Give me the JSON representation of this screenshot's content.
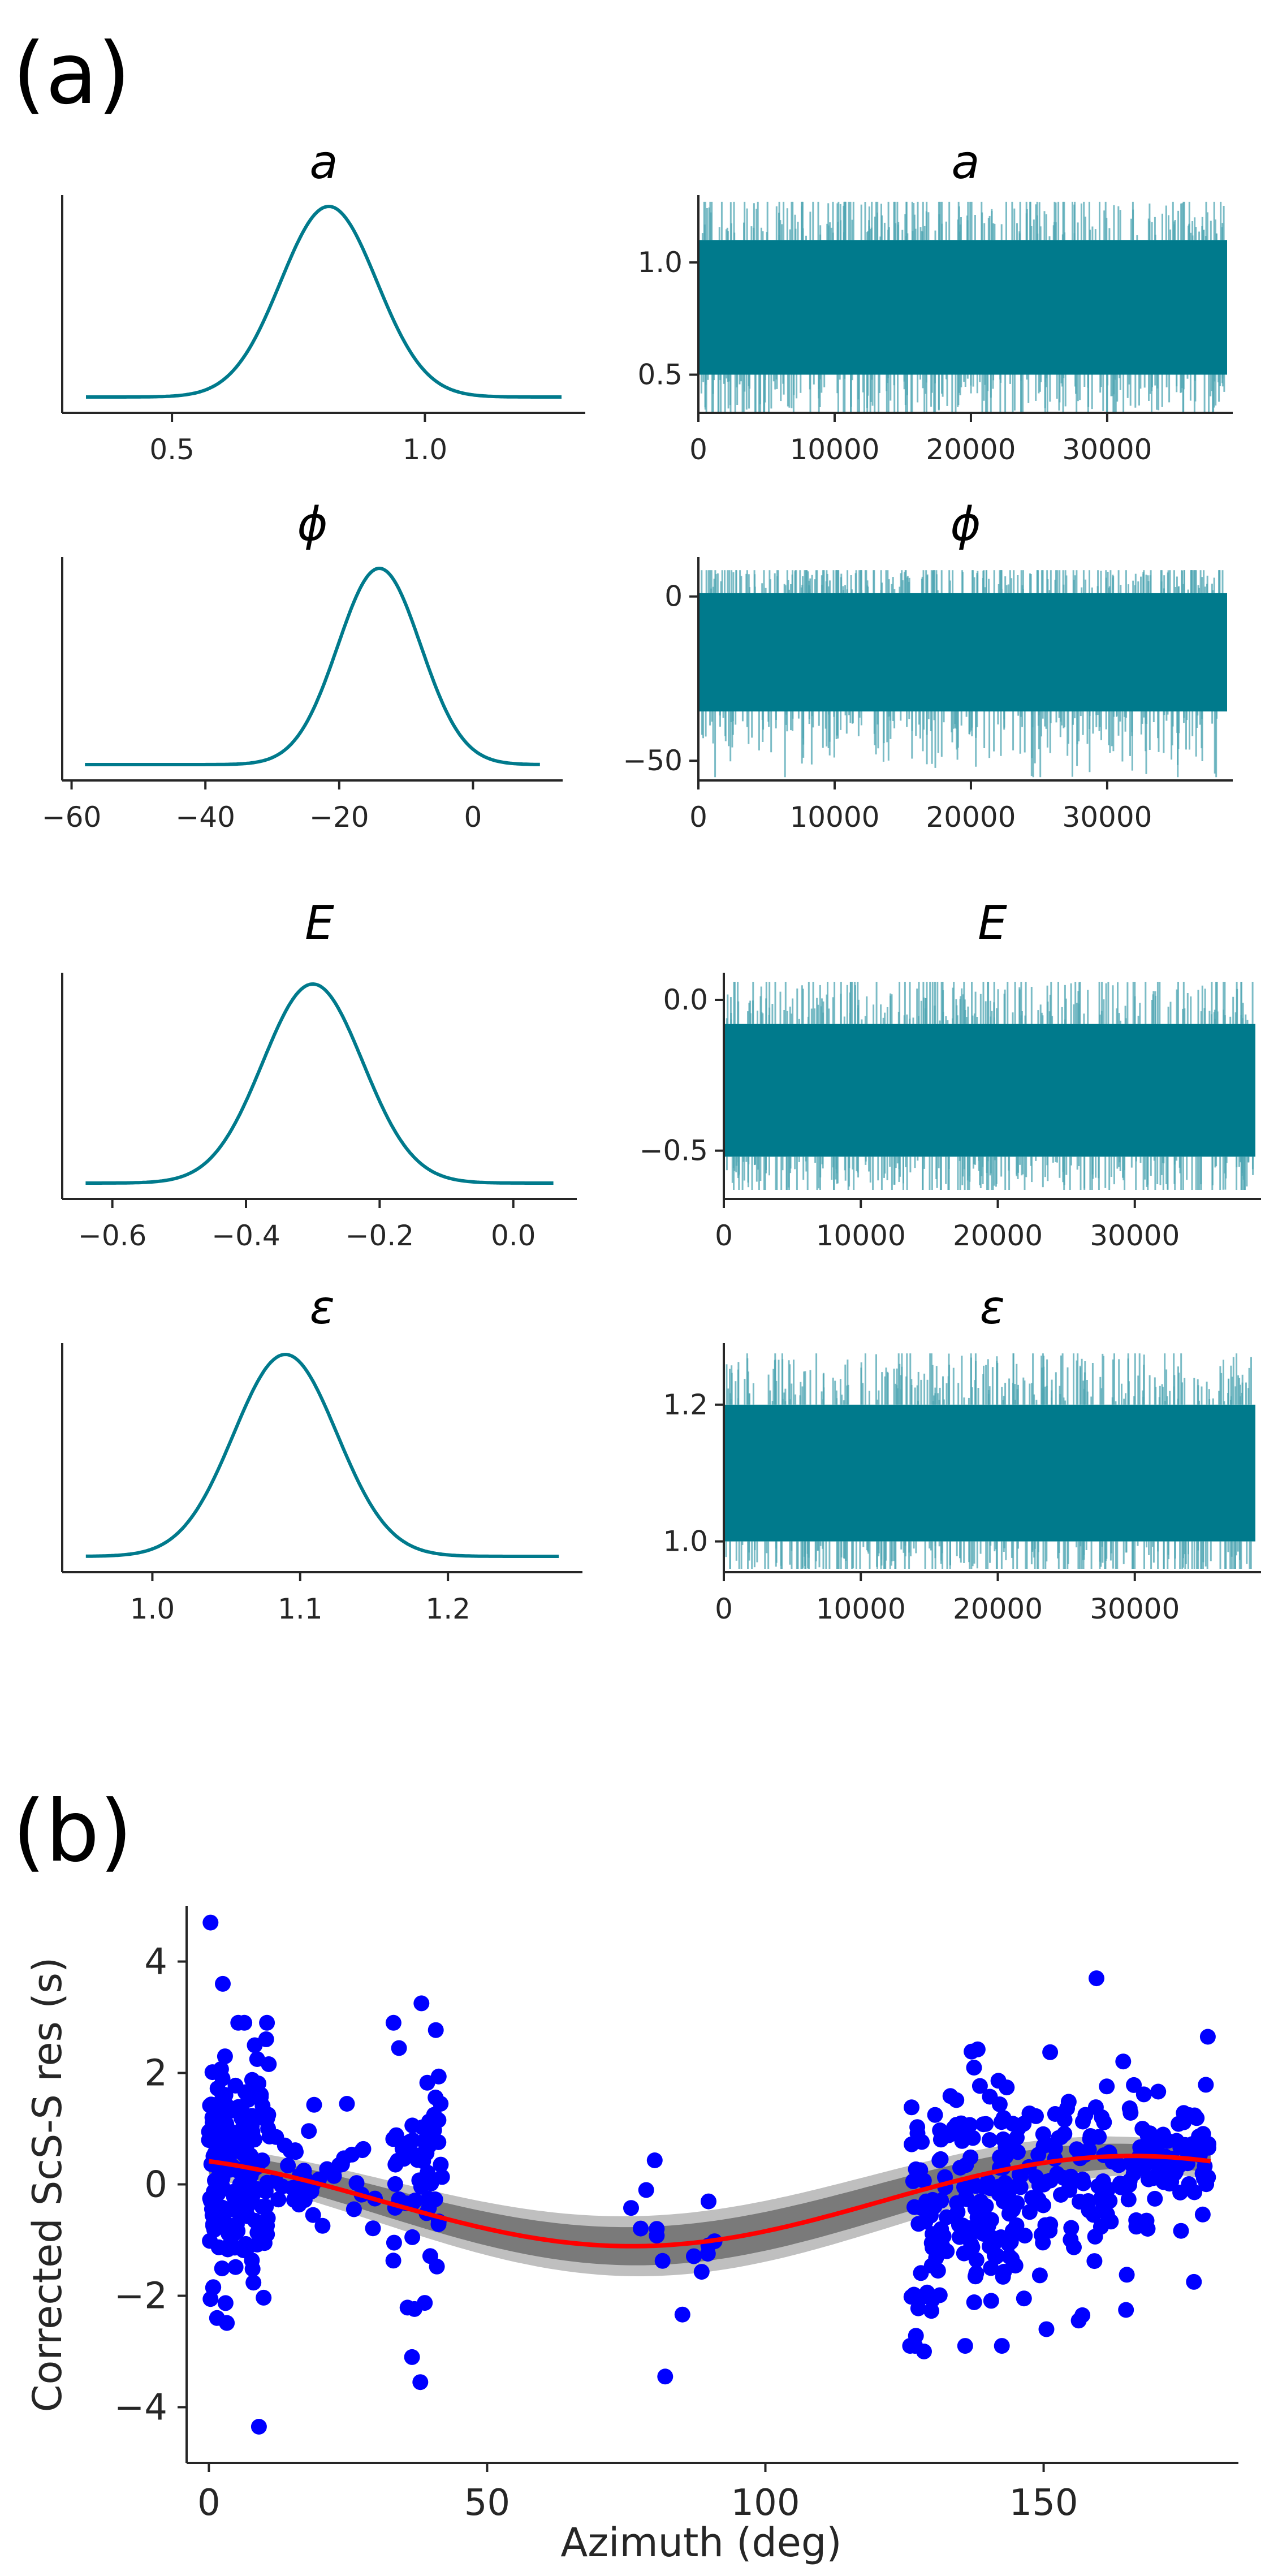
{
  "panel_a": {
    "label": "(a)",
    "params": [
      {
        "name": "a",
        "posterior": {
          "mean": 0.81,
          "sd": 0.095,
          "xmin": 0.33,
          "xmax": 1.27,
          "ticks": [
            0.5,
            1.0
          ],
          "tick_labels": [
            "0.5",
            "1.0"
          ]
        },
        "trace": {
          "center": 0.8,
          "spread": 0.3,
          "min": 0.33,
          "max": 1.27,
          "ylim": [
            0.33,
            1.3
          ],
          "yticks": [
            0.5,
            1.0
          ],
          "ytick_labels": [
            "0.5",
            "1.0"
          ]
        }
      },
      {
        "name": "ϕ",
        "posterior": {
          "mean": -14,
          "sd": 6.2,
          "xmin": -58,
          "xmax": 10,
          "ticks": [
            -60,
            -40,
            -20,
            0
          ],
          "tick_labels": [
            "−60",
            "−40",
            "−20",
            "0"
          ]
        },
        "trace": {
          "center": -17,
          "spread": 18,
          "min": -55,
          "max": 8,
          "ylim": [
            -56,
            12
          ],
          "yticks": [
            -50,
            0
          ],
          "ytick_labels": [
            "−50",
            "0"
          ]
        }
      },
      {
        "name": "E",
        "posterior": {
          "mean": -0.3,
          "sd": 0.075,
          "xmin": -0.64,
          "xmax": 0.06,
          "ticks": [
            -0.6,
            -0.4,
            -0.2,
            0.0
          ],
          "tick_labels": [
            "−0.6",
            "−0.4",
            "−0.2",
            "0.0"
          ]
        },
        "trace": {
          "center": -0.3,
          "spread": 0.22,
          "min": -0.63,
          "max": 0.06,
          "ylim": [
            -0.66,
            0.09
          ],
          "yticks": [
            -0.5,
            0.0
          ],
          "ytick_labels": [
            "−0.5",
            "0.0"
          ]
        }
      },
      {
        "name": "ɛ",
        "posterior": {
          "mean": 1.09,
          "sd": 0.035,
          "xmin": 0.955,
          "xmax": 1.275,
          "ticks": [
            1.0,
            1.1,
            1.2
          ],
          "tick_labels": [
            "1.0",
            "1.1",
            "1.2"
          ]
        },
        "trace": {
          "center": 1.1,
          "spread": 0.1,
          "min": 0.96,
          "max": 1.275,
          "ylim": [
            0.955,
            1.29
          ],
          "yticks": [
            1.0,
            1.2
          ],
          "ytick_labels": [
            "1.0",
            "1.2"
          ]
        }
      }
    ],
    "trace_xlim": [
      0,
      40000
    ],
    "trace_xticks": [
      0,
      10000,
      20000,
      30000
    ],
    "trace_xtick_labels": [
      "0",
      "10000",
      "20000",
      "30000"
    ],
    "colors": {
      "line": "#007a8c",
      "fill": "#4fa6b3"
    }
  },
  "panel_b": {
    "label": "(b)",
    "chart_data": {
      "type": "scatter",
      "xlabel": "Azimuth (deg)",
      "ylabel": "Corrected ScS-S res (s)",
      "xlim": [
        -4,
        185
      ],
      "ylim": [
        -5.0,
        5.0
      ],
      "xticks": [
        0,
        50,
        100,
        150
      ],
      "xtick_labels": [
        "0",
        "50",
        "100",
        "150"
      ],
      "yticks": [
        -4,
        -2,
        0,
        2,
        4
      ],
      "ytick_labels": [
        "−4",
        "−2",
        "0",
        "2",
        "4"
      ],
      "model": {
        "description": "best-fit sinusoid",
        "formula": "a*cos(2*(az-phi)) + E",
        "a": 0.81,
        "phi": -14,
        "E": -0.3
      },
      "band": {
        "description": "posterior model ensemble",
        "half_width_outer": 0.55,
        "half_width_inner": 0.35
      },
      "clusters": [
        {
          "az_range": [
            0,
            11
          ],
          "count": 180,
          "center": 0.25,
          "spread": 1.0
        },
        {
          "az_range": [
            11,
            30
          ],
          "count": 40,
          "center": 0.2,
          "spread": 0.55
        },
        {
          "az_range": [
            33,
            42
          ],
          "count": 60,
          "center": 0.2,
          "spread": 1.0
        },
        {
          "az_range": [
            75,
            92
          ],
          "count": 14,
          "center": -0.7,
          "spread": 0.9
        },
        {
          "az_range": [
            126,
            146
          ],
          "count": 160,
          "center": -0.4,
          "spread": 1.0
        },
        {
          "az_range": [
            146,
            165
          ],
          "count": 90,
          "center": 0.1,
          "spread": 0.95
        },
        {
          "az_range": [
            165,
            180
          ],
          "count": 80,
          "center": 0.45,
          "spread": 0.6
        }
      ],
      "outliers": [
        {
          "x": 0.3,
          "y": 4.7
        },
        {
          "x": 2.5,
          "y": 3.6
        },
        {
          "x": 9.0,
          "y": -4.35
        },
        {
          "x": 36.5,
          "y": -3.1
        },
        {
          "x": 38.0,
          "y": -3.55
        },
        {
          "x": 38.2,
          "y": 3.25
        },
        {
          "x": 82.0,
          "y": -3.45
        },
        {
          "x": 128.5,
          "y": -3.0
        },
        {
          "x": 142.5,
          "y": -2.9
        },
        {
          "x": 150.5,
          "y": -2.6
        },
        {
          "x": 159.5,
          "y": 3.7
        },
        {
          "x": 177.0,
          "y": -1.75
        },
        {
          "x": 179.5,
          "y": 2.65
        }
      ],
      "colors": {
        "points": "#0000ff",
        "model": "#ff0000",
        "band_outer": "#bfbfbf",
        "band_inner": "#7a7a7a"
      }
    }
  }
}
